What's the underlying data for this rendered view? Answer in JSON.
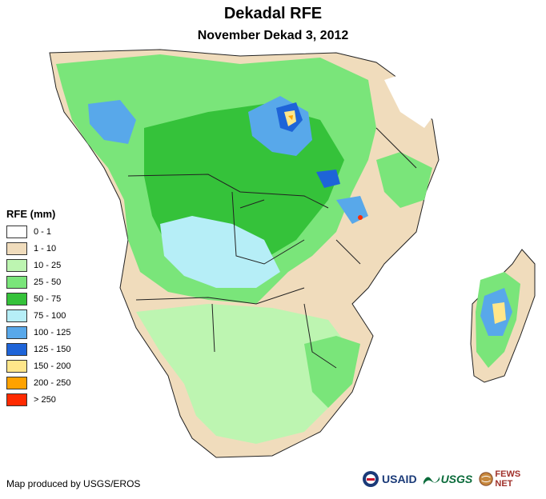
{
  "title": "Dekadal RFE",
  "subtitle": "November Dekad 3, 2012",
  "legend": {
    "title": "RFE (mm)",
    "items": [
      {
        "label": "0 - 1",
        "color": "#ffffff"
      },
      {
        "label": "1 - 10",
        "color": "#f0dcbc"
      },
      {
        "label": "10 - 25",
        "color": "#bdf5b1"
      },
      {
        "label": "25 - 50",
        "color": "#7ae57a"
      },
      {
        "label": "50 - 75",
        "color": "#35c23a"
      },
      {
        "label": "75 - 100",
        "color": "#b6eef7"
      },
      {
        "label": "100 - 125",
        "color": "#58a8ea"
      },
      {
        "label": "125 - 150",
        "color": "#1e64d8"
      },
      {
        "label": "150 - 200",
        "color": "#ffe68a"
      },
      {
        "label": "200 - 250",
        "color": "#ffa200"
      },
      {
        "label": "> 250",
        "color": "#ff2a00"
      }
    ]
  },
  "credit": "Map produced by USGS/EROS",
  "logos": {
    "usaid": "USAID",
    "usgs": "USGS",
    "fews": "FEWS NET"
  },
  "map": {
    "land_base_color": "#f0dcbc",
    "border_color": "#222222"
  }
}
